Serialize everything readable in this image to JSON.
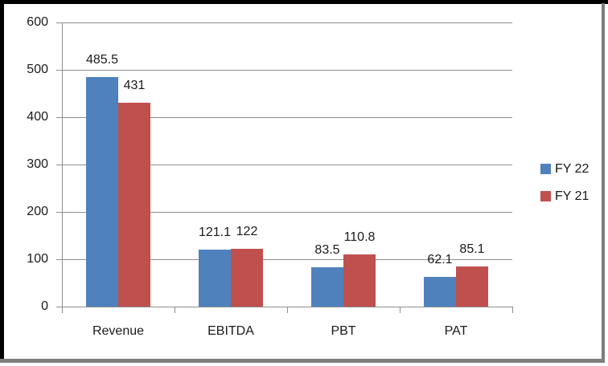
{
  "chart_data": {
    "type": "bar",
    "categories": [
      "Revenue",
      "EBITDA",
      "PBT",
      "PAT"
    ],
    "series": [
      {
        "name": "FY 22",
        "color": "#4f81bd",
        "values": [
          485.5,
          121.1,
          83.5,
          62.1
        ],
        "labels": [
          "485.5",
          "121.1",
          "83.5",
          "62.1"
        ]
      },
      {
        "name": "FY 21",
        "color": "#c0504d",
        "values": [
          431,
          122,
          110.8,
          85.1
        ],
        "labels": [
          "431",
          "122",
          "110.8",
          "85.1"
        ]
      }
    ],
    "title": "",
    "xlabel": "",
    "ylabel": "",
    "ylim": [
      0,
      600
    ],
    "yticks": [
      0,
      100,
      200,
      300,
      400,
      500,
      600
    ],
    "ytick_labels": [
      "0",
      "100",
      "200",
      "300",
      "400",
      "500",
      "600"
    ],
    "grid": true,
    "legend_position": "right"
  },
  "colors": {
    "gridline": "#8e8e8e",
    "axis": "#8e8e8e",
    "text": "#1a1a1a",
    "frame_border": "#000000",
    "frame_shadow": "#7d7d7d",
    "background": "#ffffff"
  }
}
